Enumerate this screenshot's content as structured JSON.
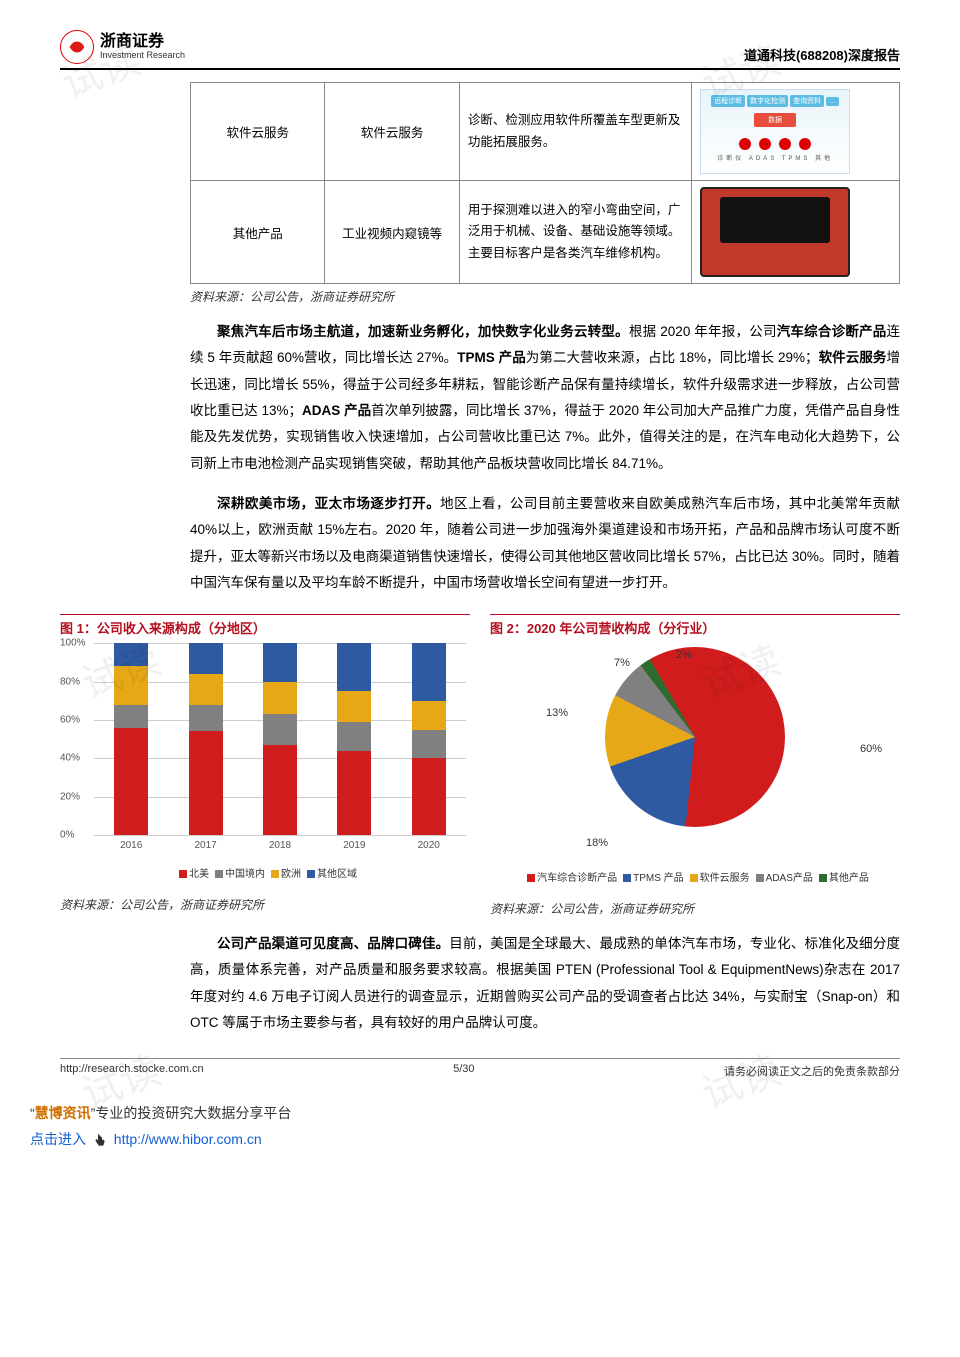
{
  "header": {
    "logo_cn": "浙商证券",
    "logo_en": "Investment Research",
    "right": "道通科技(688208)深度报告"
  },
  "table": {
    "rows": [
      {
        "cat": "软件云服务",
        "sub": "软件云服务",
        "desc": "诊断、检测应用软件所覆盖车型更新及功能拓展服务。",
        "img": "cloud"
      },
      {
        "cat": "其他产品",
        "sub": "工业视频内窥镜等",
        "desc": "用于探测难以进入的窄小弯曲空间，广泛用于机械、设备、基础设施等领域。主要目标客户是各类汽车维修机构。",
        "img": "case"
      }
    ],
    "source": "资料来源：公司公告，浙商证券研究所"
  },
  "para1": {
    "lead": "聚焦汽车后市场主航道，加速新业务孵化，加快数字化业务云转型。",
    "rest": "根据 2020 年年报，公司汽车综合诊断产品连续 5 年贡献超 60%营收，同比增长达 27%。TPMS 产品为第二大营收来源，占比 18%，同比增长 29%；软件云服务增长迅速，同比增长 55%，得益于公司经多年耕耘，智能诊断产品保有量持续增长，软件升级需求进一步释放，占公司营收比重已达 13%；ADAS 产品首次单列披露，同比增长 37%，得益于 2020 年公司加大产品推广力度，凭借产品自身性能及先发优势，实现销售收入快速增加，占公司营收比重已达 7%。此外，值得关注的是，在汽车电动化大趋势下，公司新上市电池检测产品实现销售突破，帮助其他产品板块营收同比增长 84.71%。",
    "bold_terms": [
      "汽车综合诊断产品",
      "TPMS 产品",
      "软件云服务",
      "ADAS 产品"
    ]
  },
  "para2": {
    "lead": "深耕欧美市场，亚太市场逐步打开。",
    "rest": "地区上看，公司目前主要营收来自欧美成熟汽车后市场，其中北美常年贡献 40%以上，欧洲贡献 15%左右。2020 年，随着公司进一步加强海外渠道建设和市场开拓，产品和品牌市场认可度不断提升，亚太等新兴市场以及电商渠道销售快速增长，使得公司其他地区营收同比增长 57%，占比已达 30%。同时，随着中国汽车保有量以及平均车龄不断提升，中国市场营收增长空间有望进一步打开。"
  },
  "chart1": {
    "title": "图 1：公司收入来源构成（分地区）",
    "type": "stacked-bar-100",
    "categories": [
      "2016",
      "2017",
      "2018",
      "2019",
      "2020"
    ],
    "series": [
      {
        "name": "北美",
        "color": "#d01c1c",
        "values": [
          56,
          54,
          47,
          44,
          40
        ]
      },
      {
        "name": "中国境内",
        "color": "#808080",
        "values": [
          12,
          14,
          16,
          15,
          15
        ]
      },
      {
        "name": "欧洲",
        "color": "#e6a817",
        "values": [
          20,
          16,
          17,
          16,
          15
        ]
      },
      {
        "name": "其他区域",
        "color": "#2d5aa0",
        "values": [
          12,
          16,
          20,
          25,
          30
        ]
      }
    ],
    "ylim": [
      0,
      100
    ],
    "ytick_step": 20,
    "ylabel_suffix": "%",
    "grid_color": "#cccccc",
    "label_fontsize": 10,
    "source": "资料来源：公司公告，浙商证券研究所"
  },
  "chart2": {
    "title": "图 2：2020 年公司营收构成（分行业）",
    "type": "pie",
    "slices": [
      {
        "name": "汽车综合诊断产品",
        "value": 60,
        "color": "#d01c1c"
      },
      {
        "name": "TPMS 产品",
        "value": 18,
        "color": "#2d5aa0"
      },
      {
        "name": "软件云服务",
        "value": 13,
        "color": "#e6a817"
      },
      {
        "name": "ADAS产品",
        "value": 7,
        "color": "#808080"
      },
      {
        "name": "其他产品",
        "value": 2,
        "color": "#2e6b2e"
      }
    ],
    "label_fontsize": 11,
    "labels_shown": [
      "60%",
      "18%",
      "13%",
      "7%",
      "2%"
    ],
    "source": "资料来源：公司公告，浙商证券研究所"
  },
  "para3": {
    "lead": "公司产品渠道可见度高、品牌口碑佳。",
    "rest": "目前，美国是全球最大、最成熟的单体汽车市场，专业化、标准化及细分度高，质量体系完善，对产品质量和服务要求较高。根据美国 PTEN (Professional Tool & EquipmentNews)杂志在 2017 年度对约 4.6 万电子订阅人员进行的调查显示，近期曾购买公司产品的受调查者占比达 34%，与实耐宝（Snap-on）和 OTC 等属于市场主要参与者，具有较好的用户品牌认可度。"
  },
  "footer": {
    "url": "http://research.stocke.com.cn",
    "page": "5/30",
    "right": "请务必阅读正文之后的免责条款部分"
  },
  "promo": {
    "quote_open": "“",
    "brand": "慧博资讯",
    "quote_close": "”",
    "tag": "专业的投资研究大数据分享平台",
    "cta": "点击进入",
    "link": "http://www.hibor.com.cn"
  },
  "watermarks": [
    "试读",
    "试读",
    "试读",
    "试读",
    "试读",
    "试读"
  ]
}
